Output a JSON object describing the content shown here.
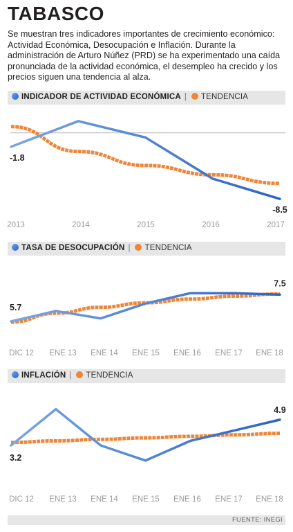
{
  "title": "TABASCO",
  "description": "Se muestran tres indicadores importantes de crecimiento económico: Actividad Económica, Desocupación e Inflación. Durante la administración de Arturo Núñez (PRD) se ha experimentado una caída pronunciada de la actividad económica, el desempleo ha crecido y los precios siguen una tendencia al alza.",
  "source": "FUENTE: INEGI",
  "colors": {
    "series": "#3f7bd9",
    "trend": "#ef8637"
  },
  "chart_data": [
    {
      "type": "line",
      "title": "INDICADOR DE ACTIVIDAD ECONÓMICA",
      "categories": [
        "2013",
        "2014",
        "2015",
        "2016",
        "2017"
      ],
      "x": [
        0,
        1,
        2,
        3,
        4
      ],
      "series": [
        {
          "name": "INDICADOR DE ACTIVIDAD ECONÓMICA",
          "values": [
            -1.8,
            1.5,
            -0.6,
            -5.9,
            -8.5
          ],
          "labels": [
            "-1.8",
            "",
            "",
            "",
            "-8.5"
          ]
        },
        {
          "name": "TENDENCIA",
          "values": [
            0.8,
            -2.4,
            -4.2,
            -5.4,
            -6.5
          ]
        }
      ],
      "ylim": [
        -10.0,
        3.0
      ],
      "zero_line": true
    },
    {
      "type": "line",
      "title": "TASA DE DESOCUPACIÓN",
      "categories": [
        "DIC 12",
        "ENE 13",
        "ENE 14",
        "ENE 15",
        "ENE 16",
        "ENE 17",
        "ENE 18"
      ],
      "x": [
        0,
        1,
        2,
        3,
        4,
        5,
        6
      ],
      "series": [
        {
          "name": "TASA DE DESOCUPACIÓN",
          "values": [
            5.7,
            6.4,
            5.9,
            6.9,
            7.6,
            7.6,
            7.5
          ],
          "labels": [
            "5.7",
            "",
            "",
            "",
            "",
            "",
            "7.5"
          ]
        },
        {
          "name": "TENDENCIA",
          "values": [
            5.65,
            6.25,
            6.65,
            6.95,
            7.2,
            7.4,
            7.55
          ]
        }
      ],
      "ylim": [
        4.3,
        9.8
      ]
    },
    {
      "type": "line",
      "title": "INFLACIÓN",
      "categories": [
        "DIC 12",
        "ENE 13",
        "ENE 14",
        "ENE 15",
        "ENE 16",
        "ENE 17",
        "ENE 18"
      ],
      "x": [
        0,
        1,
        2,
        3,
        4,
        5,
        6
      ],
      "series": [
        {
          "name": "INFLACIÓN",
          "values": [
            3.2,
            5.6,
            3.2,
            2.2,
            3.5,
            4.2,
            4.9
          ],
          "labels": [
            "3.2",
            "",
            "",
            "",
            "",
            "",
            "4.9"
          ]
        },
        {
          "name": "TENDENCIA",
          "values": [
            3.4,
            3.5,
            3.6,
            3.7,
            3.8,
            3.9,
            4.0
          ]
        }
      ],
      "ylim": [
        0.5,
        7.0
      ]
    }
  ]
}
